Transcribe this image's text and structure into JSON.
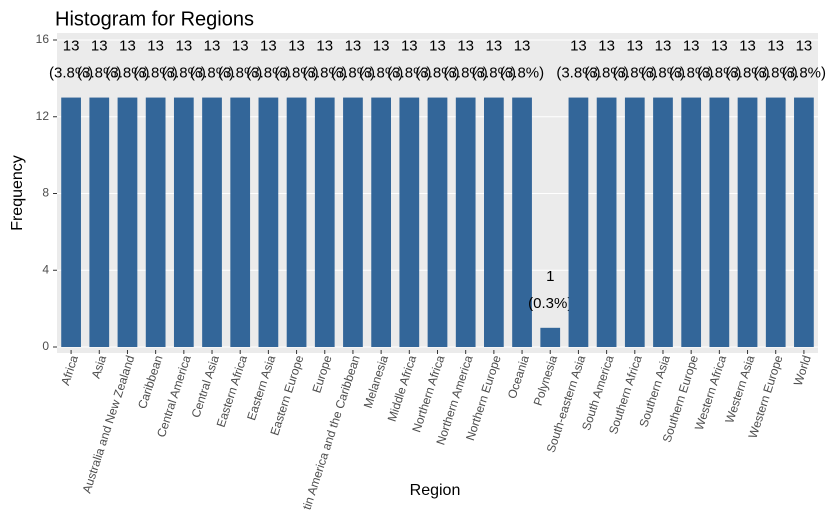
{
  "chart_data": {
    "type": "bar",
    "title": "Histogram for Regions",
    "x_label": "Region",
    "y_label": "Frequency",
    "categories": [
      "Africa",
      "Asia",
      "Australia and New Zealand",
      "Caribbean",
      "Central America",
      "Central Asia",
      "Eastern Africa",
      "Eastern Asia",
      "Eastern Europe",
      "Europe",
      "Latin America and the Caribbean",
      "Melanesia",
      "Middle Africa",
      "Northern Africa",
      "Northern America",
      "Northern Europe",
      "Oceania",
      "Polynesia",
      "South-eastern Asia",
      "South America",
      "Southern Africa",
      "Southern Asia",
      "Southern Europe",
      "Western Africa",
      "Western Asia",
      "Western Europe",
      "World"
    ],
    "values": [
      13,
      13,
      13,
      13,
      13,
      13,
      13,
      13,
      13,
      13,
      13,
      13,
      13,
      13,
      13,
      13,
      13,
      1,
      13,
      13,
      13,
      13,
      13,
      13,
      13,
      13,
      13
    ],
    "percent_values": [
      3.8,
      3.8,
      3.8,
      3.8,
      3.8,
      3.8,
      3.8,
      3.8,
      3.8,
      3.8,
      3.8,
      3.8,
      3.8,
      3.8,
      3.8,
      3.8,
      3.8,
      0.3,
      3.8,
      3.8,
      3.8,
      3.8,
      3.8,
      3.8,
      3.8,
      3.8,
      3.8
    ],
    "percent_labels": [
      "(3.8%)",
      "(3.8%)",
      "(3.8%)",
      "(3.8%)",
      "(3.8%)",
      "(3.8%)",
      "(3.8%)",
      "(3.8%)",
      "(3.8%)",
      "(3.8%)",
      "(3.8%)",
      "(3.8%)",
      "(3.8%)",
      "(3.8%)",
      "(3.8%)",
      "(3.8%)",
      "(3.8%)",
      "(0.3%)",
      "(3.8%)",
      "(3.8%)",
      "(3.8%)",
      "(3.8%)",
      "(3.8%)",
      "(3.8%)",
      "(3.8%)",
      "(3.8%)",
      "(3.8%)"
    ],
    "color": "#336699",
    "ylim": [
      0,
      16
    ],
    "yticks": [
      0,
      4,
      8,
      12,
      16
    ],
    "grid": true
  }
}
